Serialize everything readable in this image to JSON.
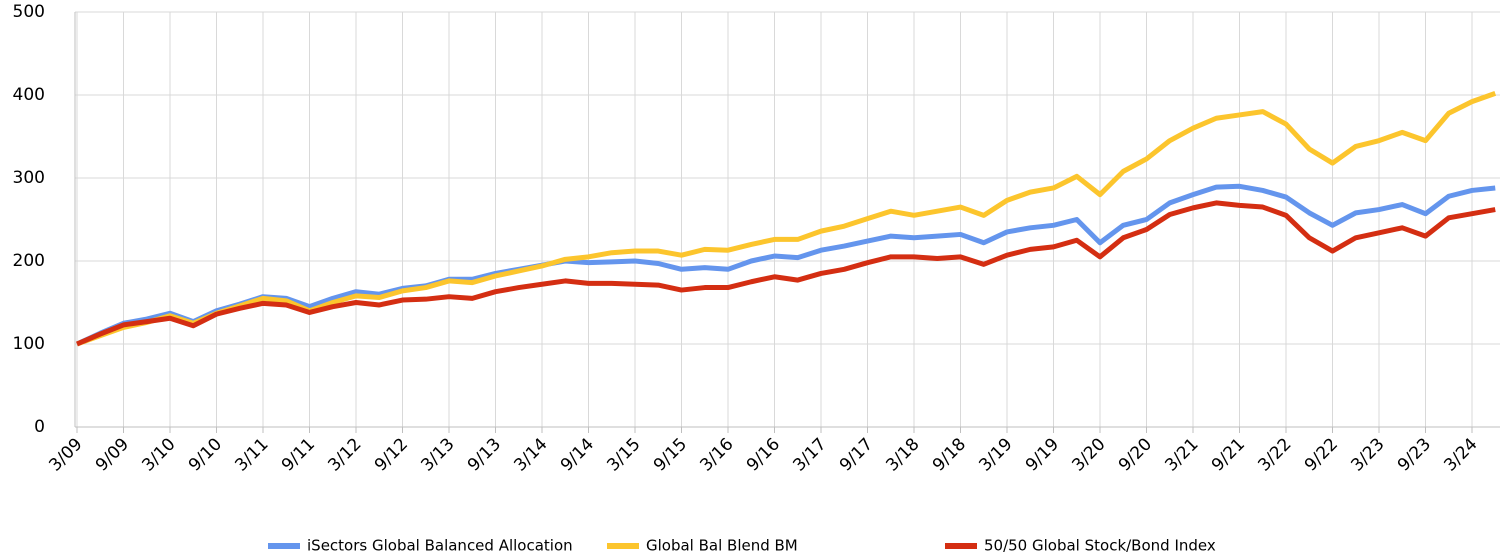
{
  "chart_data": {
    "type": "line",
    "categories": [
      "3/09",
      null,
      "9/09",
      null,
      "3/10",
      null,
      "9/10",
      null,
      "3/11",
      null,
      "9/11",
      null,
      "3/12",
      null,
      "9/12",
      null,
      "3/13",
      null,
      "9/13",
      null,
      "3/14",
      null,
      "9/14",
      null,
      "3/15",
      null,
      "9/15",
      null,
      "3/16",
      null,
      "9/16",
      null,
      "3/17",
      null,
      "9/17",
      null,
      "3/18",
      null,
      "9/18",
      null,
      "3/19",
      null,
      "9/19",
      null,
      "3/20",
      null,
      "9/20",
      null,
      "3/21",
      null,
      "9/21",
      null,
      "3/22",
      null,
      "9/22",
      null,
      "3/23",
      null,
      "9/23",
      null,
      "3/24",
      null
    ],
    "series": [
      {
        "name": "iSectors Global Balanced Allocation",
        "color": "#6495ed",
        "values": [
          100,
          113,
          125,
          130,
          137,
          127,
          140,
          148,
          157,
          155,
          145,
          155,
          163,
          160,
          167,
          170,
          178,
          178,
          185,
          190,
          195,
          200,
          198,
          199,
          200,
          197,
          190,
          192,
          190,
          200,
          206,
          204,
          213,
          218,
          224,
          230,
          228,
          230,
          232,
          222,
          235,
          240,
          243,
          250,
          222,
          243,
          250,
          270,
          280,
          289,
          290,
          285,
          277,
          258,
          243,
          258,
          262,
          268,
          257,
          278,
          285,
          288
        ]
      },
      {
        "name": "Global Bal Blend BM",
        "color": "#fcc52d",
        "values": [
          100,
          110,
          120,
          126,
          134,
          125,
          137,
          146,
          155,
          152,
          140,
          150,
          158,
          156,
          164,
          168,
          176,
          174,
          182,
          188,
          194,
          202,
          205,
          210,
          212,
          212,
          207,
          214,
          213,
          220,
          226,
          226,
          236,
          242,
          251,
          260,
          255,
          260,
          265,
          255,
          273,
          283,
          288,
          302,
          280,
          308,
          323,
          345,
          360,
          372,
          376,
          380,
          365,
          335,
          318,
          338,
          345,
          355,
          345,
          378,
          392,
          402
        ]
      },
      {
        "name": "50/50 Global Stock/Bond Index",
        "color": "#d42e12",
        "values": [
          100,
          112,
          123,
          127,
          131,
          122,
          136,
          143,
          149,
          147,
          138,
          145,
          150,
          147,
          153,
          154,
          157,
          155,
          163,
          168,
          172,
          176,
          173,
          173,
          172,
          171,
          165,
          168,
          168,
          175,
          181,
          177,
          185,
          190,
          198,
          205,
          205,
          203,
          205,
          196,
          207,
          214,
          217,
          225,
          205,
          228,
          238,
          256,
          264,
          270,
          267,
          265,
          255,
          228,
          212,
          228,
          234,
          240,
          230,
          252,
          257,
          262
        ]
      }
    ],
    "ylim": [
      0,
      500
    ],
    "yticks": [
      0,
      100,
      200,
      300,
      400,
      500
    ],
    "grid": true,
    "legend": "bottom"
  }
}
